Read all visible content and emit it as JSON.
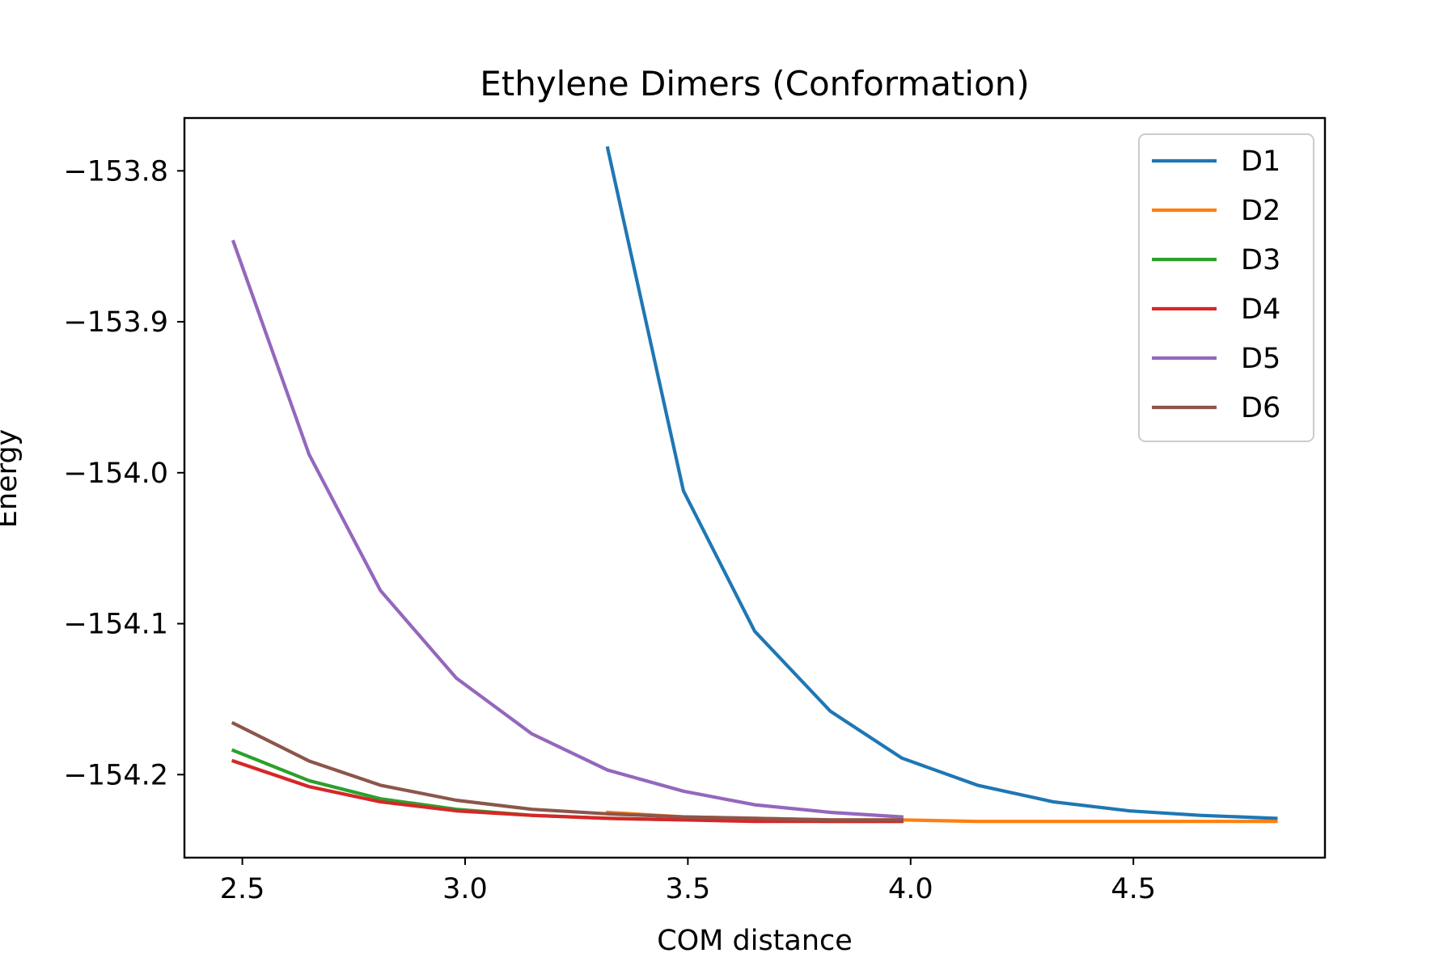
{
  "chart_data": {
    "type": "line",
    "title": "Ethylene Dimers (Conformation)",
    "xlabel": "COM distance",
    "ylabel": "Energy",
    "xlim": [
      2.37,
      4.93
    ],
    "ylim": [
      -154.255,
      -153.765
    ],
    "xticks": [
      2.5,
      3.0,
      3.5,
      4.0,
      4.5
    ],
    "xtick_labels": [
      "2.5",
      "3.0",
      "3.5",
      "4.0",
      "4.5"
    ],
    "yticks": [
      -153.8,
      -153.9,
      -154.0,
      -154.1,
      -154.2
    ],
    "ytick_labels": [
      "−153.8",
      "−153.9",
      "−154.0",
      "−154.1",
      "−154.2"
    ],
    "grid": false,
    "legend_position": "top-right",
    "series": [
      {
        "name": "D1",
        "color": "#1f77b4",
        "x": [
          3.32,
          3.49,
          3.65,
          3.82,
          3.98,
          4.15,
          4.32,
          4.49,
          4.65,
          4.82
        ],
        "y": [
          -153.785,
          -154.012,
          -154.105,
          -154.158,
          -154.189,
          -154.207,
          -154.218,
          -154.224,
          -154.227,
          -154.229
        ]
      },
      {
        "name": "D2",
        "color": "#ff7f0e",
        "x": [
          3.32,
          3.49,
          3.65,
          3.82,
          3.98,
          4.15,
          4.32,
          4.49,
          4.65,
          4.82
        ],
        "y": [
          -154.225,
          -154.228,
          -154.229,
          -154.23,
          -154.23,
          -154.231,
          -154.231,
          -154.231,
          -154.231,
          -154.231
        ]
      },
      {
        "name": "D3",
        "color": "#2ca02c",
        "x": [
          2.48,
          2.65,
          2.81,
          2.98,
          3.15,
          3.32,
          3.49,
          3.65,
          3.82,
          3.98
        ],
        "y": [
          -154.184,
          -154.204,
          -154.216,
          -154.223,
          -154.227,
          -154.229,
          -154.23,
          -154.23,
          -154.231,
          -154.231
        ]
      },
      {
        "name": "D4",
        "color": "#d62728",
        "x": [
          2.48,
          2.65,
          2.81,
          2.98,
          3.15,
          3.32,
          3.49,
          3.65,
          3.82,
          3.98
        ],
        "y": [
          -154.191,
          -154.208,
          -154.218,
          -154.224,
          -154.227,
          -154.229,
          -154.23,
          -154.231,
          -154.231,
          -154.231
        ]
      },
      {
        "name": "D5",
        "color": "#9467bd",
        "x": [
          2.48,
          2.65,
          2.81,
          2.98,
          3.15,
          3.32,
          3.49,
          3.65,
          3.82,
          3.98
        ],
        "y": [
          -153.847,
          -153.988,
          -154.078,
          -154.136,
          -154.173,
          -154.197,
          -154.211,
          -154.22,
          -154.225,
          -154.228
        ]
      },
      {
        "name": "D6",
        "color": "#8c564b",
        "x": [
          2.48,
          2.65,
          2.81,
          2.98,
          3.15,
          3.32,
          3.49,
          3.65,
          3.82,
          3.98
        ],
        "y": [
          -154.166,
          -154.191,
          -154.207,
          -154.217,
          -154.223,
          -154.226,
          -154.228,
          -154.229,
          -154.23,
          -154.23
        ]
      }
    ]
  }
}
